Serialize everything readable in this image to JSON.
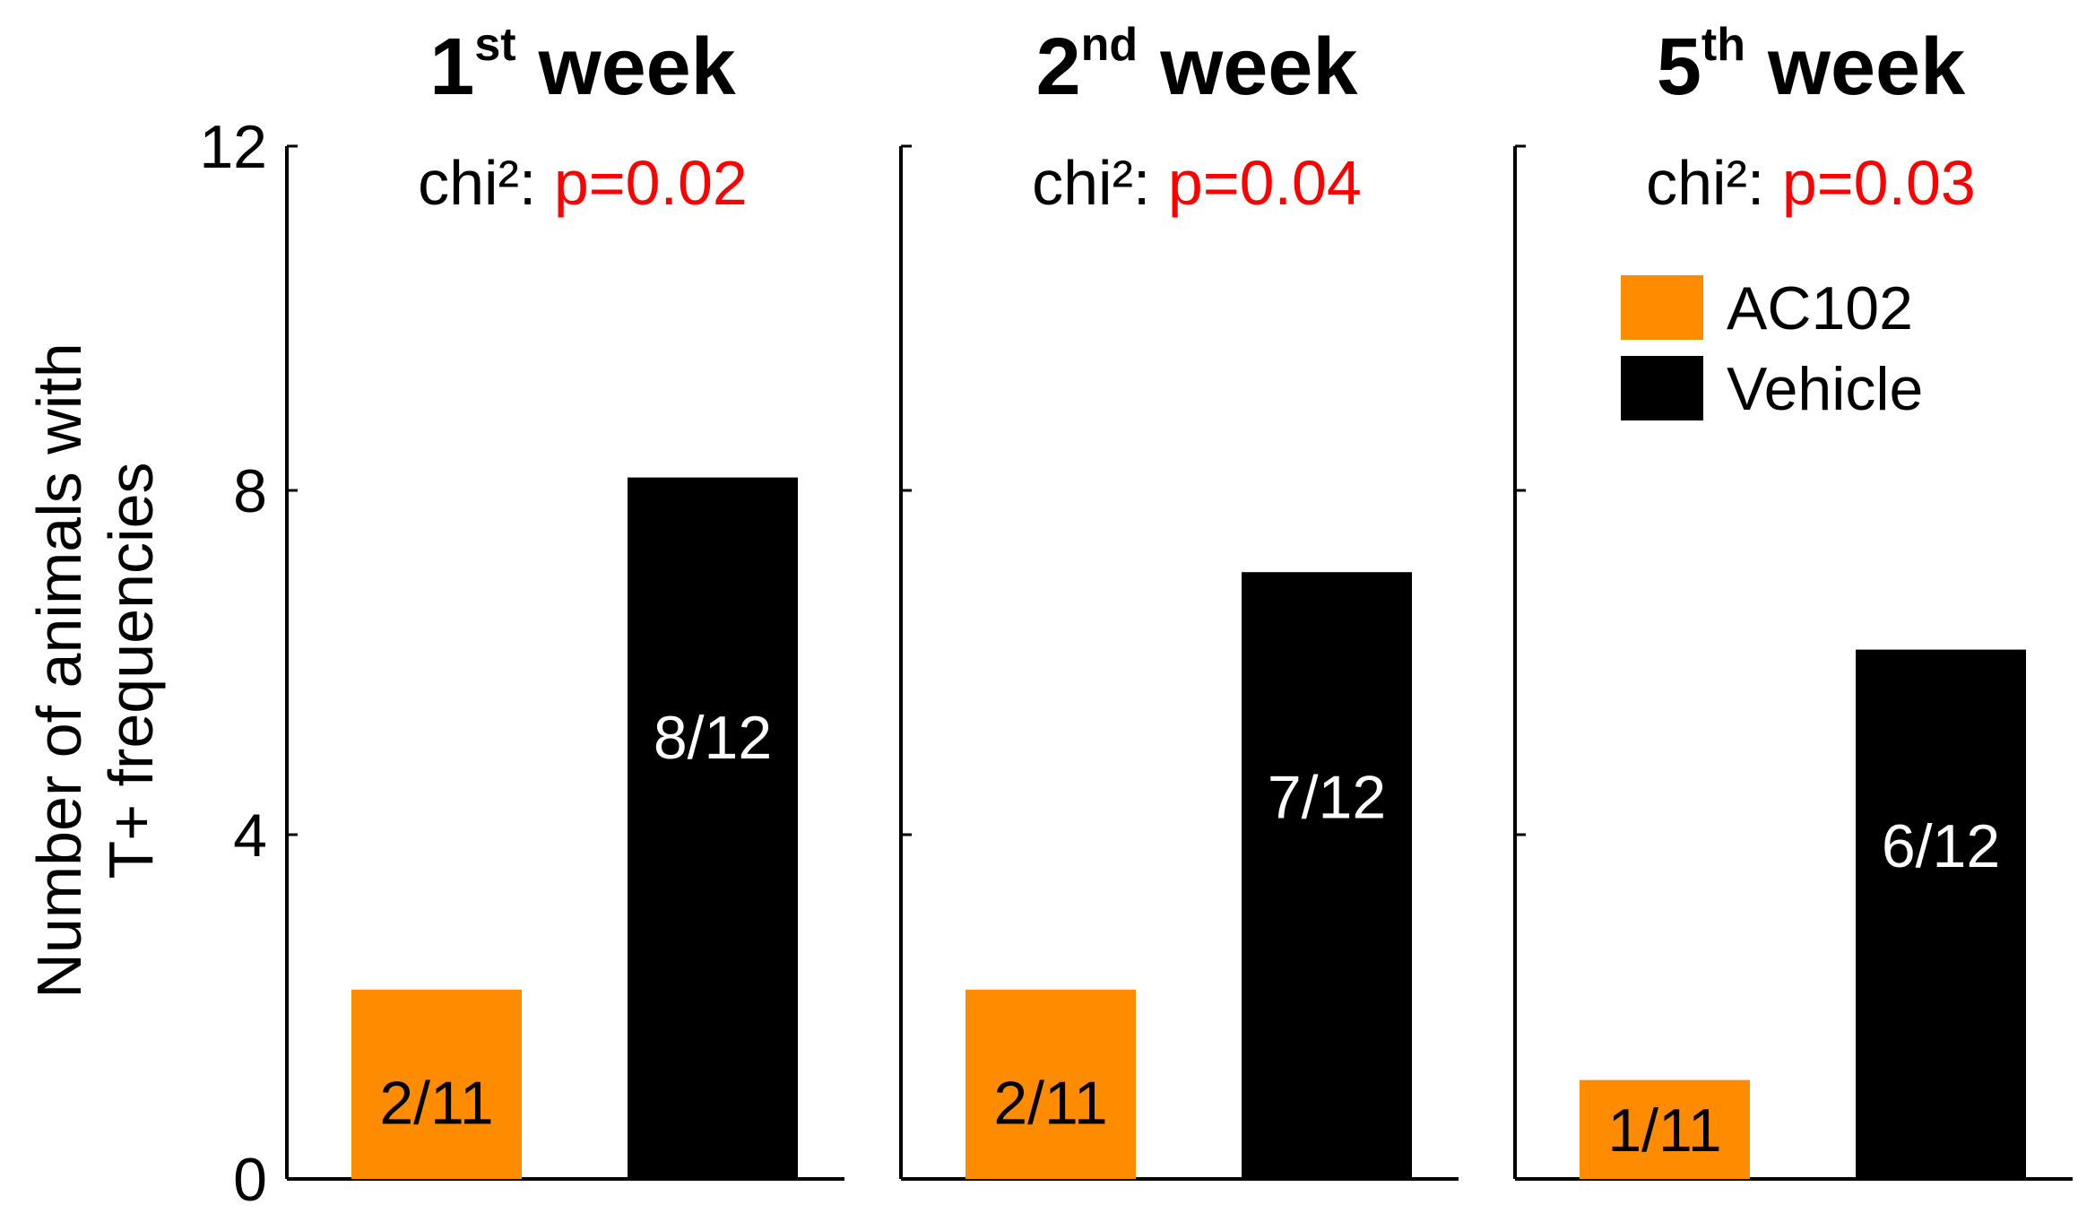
{
  "chart_data": {
    "type": "bar",
    "ylabel_lines": [
      "Number of animals with",
      "T+ frequencies"
    ],
    "ylim": [
      0,
      12
    ],
    "yticks": [
      0,
      4,
      8,
      12
    ],
    "grid": false,
    "legend_position": "top-right",
    "legend": [
      {
        "label": "AC102",
        "color": "#FF8C00"
      },
      {
        "label": "Vehicle",
        "color": "#000000"
      }
    ],
    "panels": [
      {
        "title_main": "1",
        "title_sup": "st",
        "title_rest": " week",
        "stat_label": "chi²:",
        "stat_value": "p=0.02",
        "categories": [
          "AC102",
          "Vehicle"
        ],
        "values": [
          2.2,
          8.15
        ],
        "bar_labels": [
          "2/11",
          "8/12"
        ]
      },
      {
        "title_main": "2",
        "title_sup": "nd",
        "title_rest": " week",
        "stat_label": "chi²:",
        "stat_value": "p=0.04",
        "categories": [
          "AC102",
          "Vehicle"
        ],
        "values": [
          2.2,
          7.05
        ],
        "bar_labels": [
          "2/11",
          "7/12"
        ]
      },
      {
        "title_main": "5",
        "title_sup": "th",
        "title_rest": " week",
        "stat_label": "chi²:",
        "stat_value": "p=0.03",
        "categories": [
          "AC102",
          "Vehicle"
        ],
        "values": [
          1.15,
          6.15
        ],
        "bar_labels": [
          "1/11",
          "6/12"
        ]
      }
    ]
  },
  "colors": {
    "ac102": "#FF8C00",
    "vehicle": "#000000",
    "p_value": "#FF0000",
    "text": "#000000"
  }
}
